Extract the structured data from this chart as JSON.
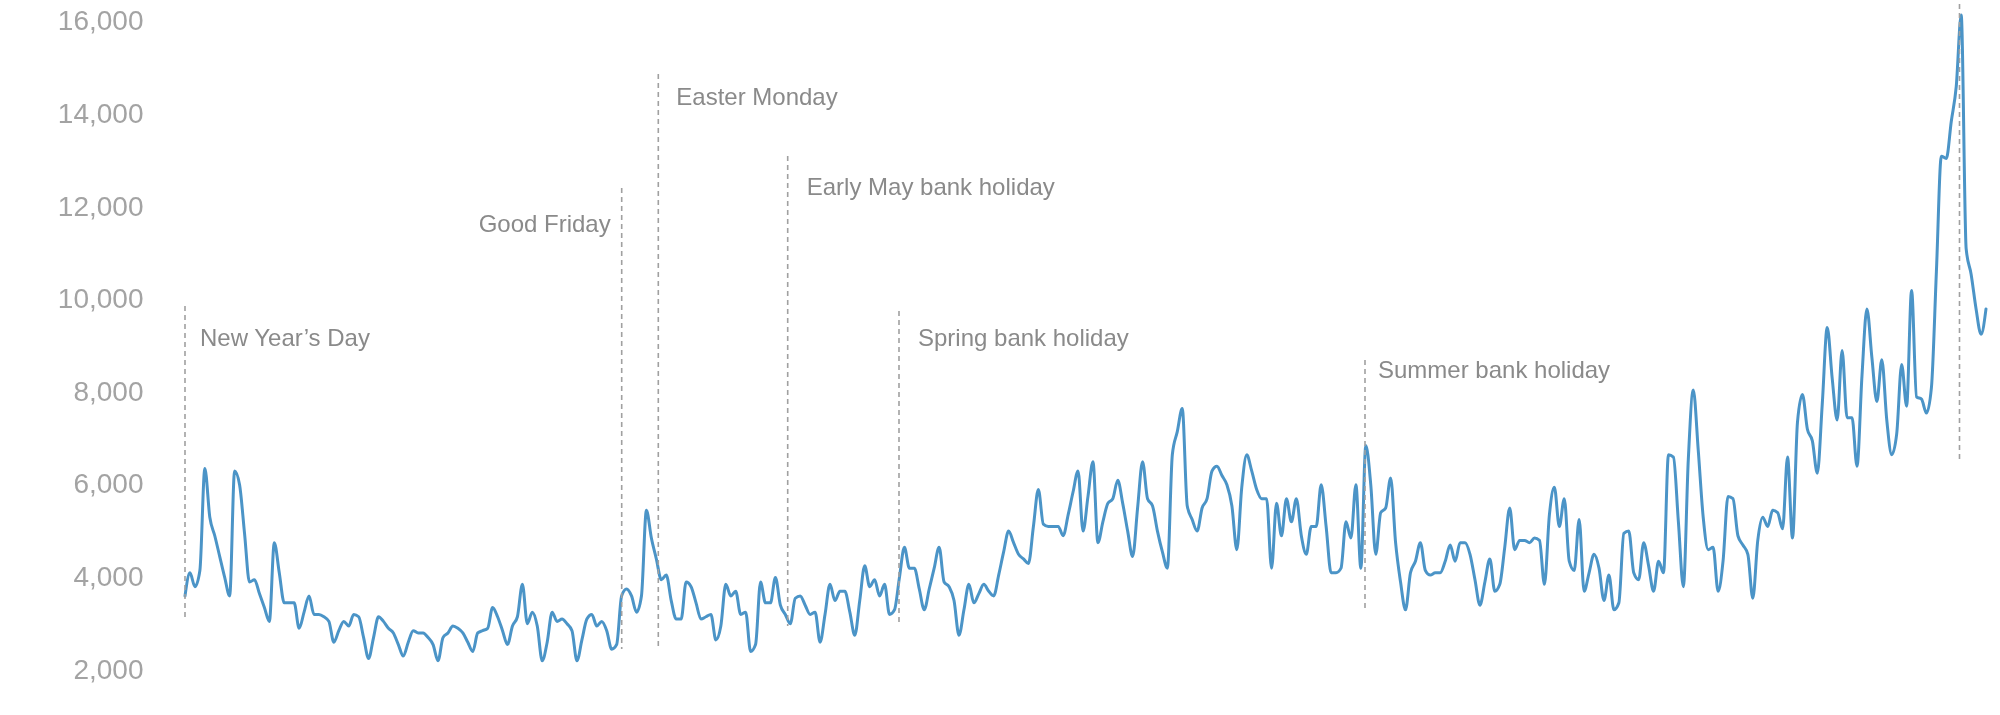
{
  "chart_data": {
    "type": "line",
    "categories": [
      null,
      null,
      null,
      null,
      null,
      null,
      null,
      null,
      null,
      null,
      null,
      null,
      null,
      null,
      null,
      null,
      null,
      null,
      null,
      null,
      null,
      null,
      null,
      null,
      null,
      null,
      null,
      null,
      null,
      null,
      null,
      null,
      null,
      null,
      null,
      null,
      null,
      null,
      null,
      null,
      null,
      null,
      null,
      null,
      null,
      null,
      null,
      null,
      null,
      null,
      null,
      null,
      null,
      null,
      null,
      null,
      null,
      null,
      null,
      null,
      null,
      null,
      null,
      null,
      null,
      null,
      null,
      null,
      null,
      null,
      null,
      null,
      null,
      null,
      null,
      null,
      null,
      null,
      null,
      null,
      null,
      null,
      null,
      null,
      null,
      null,
      null,
      null,
      null,
      null,
      null,
      null,
      null,
      null,
      null,
      null,
      null,
      null,
      null,
      null,
      null,
      null,
      null,
      null,
      null,
      null,
      null,
      null,
      null,
      null,
      null,
      null,
      null,
      null,
      null,
      null,
      null,
      null,
      null,
      null,
      null,
      null,
      null,
      null,
      null,
      null,
      null,
      null,
      null,
      null,
      null,
      null,
      null,
      null,
      null,
      null,
      null,
      null,
      null,
      null,
      null,
      null,
      null,
      null,
      null,
      null,
      null,
      null,
      null,
      null,
      null,
      null,
      null,
      null,
      null,
      null,
      null,
      null,
      null,
      null,
      null,
      null,
      null,
      null,
      null,
      null,
      null,
      null,
      null,
      null,
      null,
      null,
      null,
      null,
      null,
      null,
      null,
      null,
      null,
      null,
      null,
      null,
      null,
      null,
      null,
      null,
      null,
      null,
      null,
      null,
      null,
      null,
      null,
      null,
      null,
      null,
      null,
      null,
      null,
      null,
      null,
      null,
      null,
      null,
      null,
      null,
      null,
      null,
      null,
      null,
      null,
      null,
      null,
      null,
      null,
      null,
      null,
      null,
      null,
      null,
      null,
      null,
      null,
      null,
      null,
      null,
      null,
      null,
      null,
      null,
      null,
      null,
      null,
      null,
      null,
      null,
      null,
      null,
      null,
      null,
      null,
      null,
      null,
      null,
      null,
      null,
      null,
      null,
      null,
      null,
      null,
      null,
      null,
      null,
      null,
      null,
      null,
      null,
      null,
      null,
      null,
      null,
      null,
      null,
      null,
      null,
      null,
      null,
      null,
      null,
      null,
      null,
      null,
      null,
      null,
      null,
      null,
      null,
      null,
      null,
      null,
      null,
      null,
      null,
      null,
      null,
      null,
      null,
      null,
      null,
      null,
      null,
      null,
      null,
      null,
      null,
      null,
      null,
      null,
      null,
      null,
      null,
      null,
      null,
      null,
      null,
      null,
      null,
      null,
      null,
      null,
      null,
      null,
      null,
      null,
      null,
      null,
      null,
      null,
      null,
      null,
      null,
      null,
      null,
      null,
      null,
      null,
      null,
      null,
      null,
      null,
      null,
      null,
      null,
      null,
      null,
      null,
      null,
      null,
      null,
      null,
      null,
      null,
      null,
      null,
      null,
      null,
      null,
      null,
      null,
      null,
      null,
      null,
      null,
      null,
      null,
      null,
      null,
      null,
      null,
      null,
      null,
      null,
      null
    ],
    "series": [
      {
        "color": "#4b94c7",
        "values": [
          3600,
          4100,
          3800,
          4150,
          6350,
          5300,
          4900,
          4450,
          4000,
          3600,
          6300,
          6000,
          4950,
          3900,
          3950,
          3650,
          3350,
          3050,
          4750,
          4100,
          3450,
          3450,
          3450,
          2900,
          3250,
          3600,
          3200,
          3200,
          3150,
          3050,
          2600,
          2850,
          3050,
          2950,
          3200,
          3150,
          2700,
          2250,
          2700,
          3150,
          3050,
          2900,
          2800,
          2550,
          2300,
          2600,
          2850,
          2800,
          2800,
          2700,
          2550,
          2200,
          2700,
          2800,
          2950,
          2900,
          2800,
          2600,
          2400,
          2800,
          2850,
          2900,
          3350,
          3150,
          2850,
          2550,
          2950,
          3150,
          3850,
          3000,
          3250,
          2950,
          2200,
          2600,
          3250,
          3050,
          3100,
          3000,
          2850,
          2200,
          2650,
          3100,
          3200,
          2950,
          3050,
          2850,
          2450,
          2550,
          3600,
          3750,
          3600,
          3250,
          3600,
          5450,
          4850,
          4400,
          3950,
          4050,
          3500,
          3100,
          3100,
          3900,
          3800,
          3450,
          3100,
          3150,
          3200,
          2650,
          2950,
          3850,
          3600,
          3700,
          3200,
          3250,
          2400,
          2550,
          3900,
          3450,
          3450,
          4000,
          3400,
          3200,
          3000,
          3550,
          3600,
          3400,
          3200,
          3250,
          2600,
          3200,
          3850,
          3500,
          3700,
          3700,
          3250,
          2750,
          3500,
          4250,
          3800,
          3950,
          3600,
          3850,
          3200,
          3300,
          4000,
          4650,
          4200,
          4200,
          3750,
          3300,
          3750,
          4200,
          4650,
          3900,
          3800,
          3500,
          2750,
          3300,
          3850,
          3450,
          3650,
          3850,
          3700,
          3600,
          4050,
          4550,
          5000,
          4750,
          4500,
          4400,
          4300,
          5100,
          5900,
          5150,
          5100,
          5100,
          5100,
          4900,
          5350,
          5850,
          6300,
          5000,
          5750,
          6500,
          4750,
          5200,
          5600,
          5700,
          6100,
          5600,
          5000,
          4450,
          5500,
          6500,
          5700,
          5550,
          5000,
          4550,
          4200,
          6650,
          7150,
          7650,
          5550,
          5250,
          5000,
          5500,
          5700,
          6300,
          6400,
          6200,
          6000,
          5550,
          4600,
          5950,
          6650,
          6300,
          5900,
          5700,
          5700,
          4200,
          5600,
          4900,
          5700,
          5200,
          5700,
          4900,
          4500,
          5100,
          5100,
          6000,
          5100,
          4100,
          4100,
          4200,
          5200,
          4850,
          6000,
          4200,
          6850,
          6000,
          4500,
          5400,
          5500,
          6150,
          4750,
          3900,
          3300,
          4100,
          4350,
          4750,
          4150,
          4050,
          4100,
          4100,
          4350,
          4700,
          4350,
          4750,
          4750,
          4500,
          3950,
          3400,
          3900,
          4400,
          3700,
          3850,
          4650,
          5500,
          4600,
          4800,
          4800,
          4750,
          4850,
          4800,
          3850,
          5350,
          5950,
          5100,
          5700,
          4350,
          4150,
          5250,
          3700,
          4100,
          4500,
          4200,
          3500,
          4050,
          3300,
          3450,
          4950,
          5000,
          4100,
          3950,
          4750,
          4250,
          3700,
          4350,
          4100,
          6650,
          6600,
          5200,
          3800,
          6550,
          8050,
          6750,
          5300,
          4600,
          4650,
          3700,
          4350,
          5750,
          5700,
          4900,
          4700,
          4500,
          3550,
          4800,
          5300,
          5100,
          5450,
          5400,
          5050,
          6600,
          4850,
          7350,
          7950,
          7200,
          6950,
          6250,
          7750,
          9400,
          8300,
          7400,
          8900,
          7450,
          7450,
          6400,
          8350,
          9800,
          8750,
          7800,
          8700,
          7400,
          6650,
          7100,
          8600,
          7700,
          10200,
          7900,
          7850,
          7550,
          8100,
          10600,
          13100,
          13050,
          13850,
          14600,
          16150,
          11100,
          10550,
          9800,
          9250,
          9800
        ]
      }
    ],
    "ylim": [
      2000,
      16300
    ],
    "yticks": [
      {
        "value": 2000,
        "label": "2,000"
      },
      {
        "value": 4000,
        "label": "4,000"
      },
      {
        "value": 6000,
        "label": "6,000"
      },
      {
        "value": 8000,
        "label": "8,000"
      },
      {
        "value": 10000,
        "label": "10,000"
      },
      {
        "value": 12000,
        "label": "12,000"
      },
      {
        "value": 14000,
        "label": "14,000"
      },
      {
        "value": 16000,
        "label": "16,000"
      }
    ],
    "tick_labels": "y",
    "annotations": [
      "New Year’s Day",
      "Good Friday",
      "Easter Monday",
      "Early May bank holiday",
      "Spring bank holiday",
      "Summer bank holiday"
    ]
  }
}
